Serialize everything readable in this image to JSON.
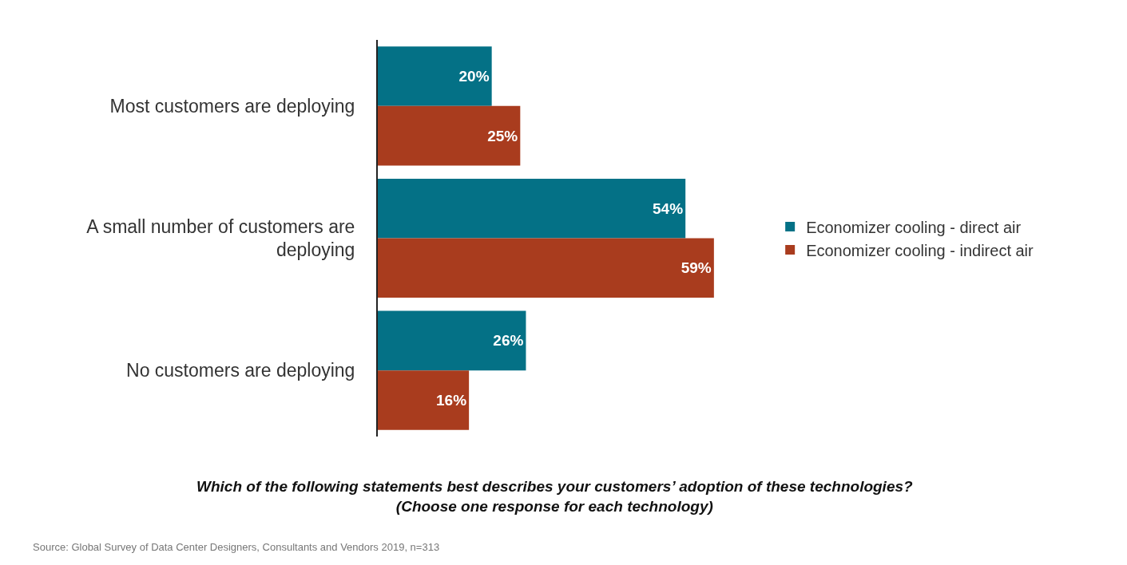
{
  "chart_data": {
    "type": "bar",
    "orientation": "horizontal",
    "categories": [
      "Most customers are deploying",
      "A small number of customers are deploying",
      "No customers are deploying"
    ],
    "series": [
      {
        "name": "Economizer cooling - direct air",
        "color": "#047186",
        "values": [
          20,
          54,
          26
        ],
        "value_labels": [
          "20%",
          "54%",
          "26%"
        ]
      },
      {
        "name": "Economizer cooling - indirect air",
        "color": "#a93c1e",
        "values": [
          25,
          59,
          16
        ],
        "value_labels": [
          "25%",
          "59%",
          "16%"
        ]
      }
    ],
    "legend": "right",
    "tick_labels": "y",
    "annotations": [
      "Which of the following statements best describes your customers’ adoption of these technologies?\n(Choose one response for each technology)",
      "Source: Global Survey of Data Center Designers, Consultants and Vendors 2019, n=313"
    ]
  }
}
